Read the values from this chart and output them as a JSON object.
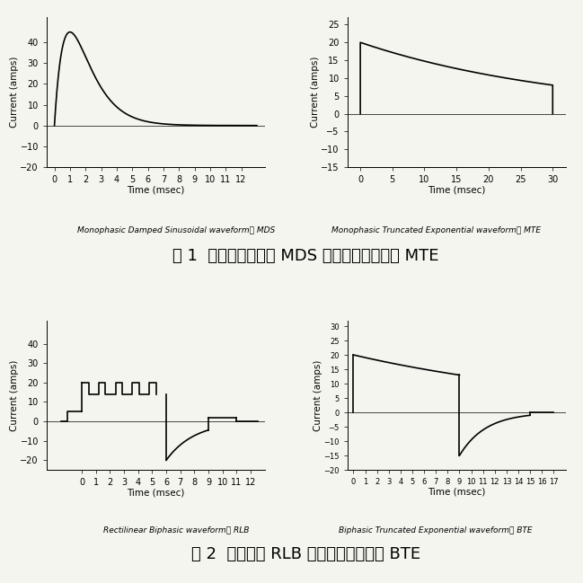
{
  "fig1_title": "图 1  单相正弦衰减波 MDS 和单相截断指数波 MTE",
  "fig2_title": "图 2  双相方波 RLB 和双相截断指数波 BTE",
  "plot1_label": "Monophasic Damped Sinusoidal waveform， MDS",
  "plot2_label": "Monophasic Truncated Exponential waveform， MTE",
  "plot3_label": "Rectilinear Biphasic waveform， RLB",
  "plot4_label": "Biphasic Truncated Exponential waveform， BTE",
  "ylabel": "Current (amps)",
  "xlabel1": "Time (msec)",
  "xlabel2": "Time (msec)",
  "xlabel3": "Time (msec)",
  "xlabel4": "Time (msec)",
  "plot1": {
    "xlim": [
      -0.5,
      13.5
    ],
    "ylim": [
      -20,
      52
    ],
    "yticks": [
      -20,
      -10,
      0,
      10,
      20,
      30,
      40
    ],
    "xticks": [
      0,
      1,
      2,
      3,
      4,
      5,
      6,
      7,
      8,
      9,
      10,
      11,
      12
    ]
  },
  "plot2": {
    "xlim": [
      -2,
      32
    ],
    "ylim": [
      -15,
      27
    ],
    "yticks": [
      -15,
      -10,
      -5,
      0,
      5,
      10,
      15,
      20,
      25
    ],
    "xticks": [
      0,
      5,
      10,
      15,
      20,
      25,
      30
    ]
  },
  "plot3": {
    "xlim": [
      -2.5,
      13
    ],
    "ylim": [
      -25,
      52
    ],
    "yticks": [
      -20,
      -10,
      0,
      10,
      20,
      30,
      40
    ],
    "xticks": [
      0,
      1,
      2,
      3,
      4,
      5,
      6,
      7,
      8,
      9,
      10,
      11,
      12
    ]
  },
  "plot4": {
    "xlim": [
      -0.5,
      18
    ],
    "ylim": [
      -20,
      32
    ],
    "yticks": [
      -20,
      -15,
      -10,
      -5,
      0,
      5,
      10,
      15,
      20,
      25,
      30
    ],
    "xticks": [
      0,
      1,
      2,
      3,
      4,
      5,
      6,
      7,
      8,
      9,
      10,
      11,
      12,
      13,
      14,
      15,
      16,
      17
    ]
  },
  "line_color": "#000000",
  "background": "#f5f5f0",
  "tick_labelsize": 7,
  "axis_labelsize": 7.5,
  "sublabel_fontsize": 6.5,
  "caption_fontsize": 13
}
